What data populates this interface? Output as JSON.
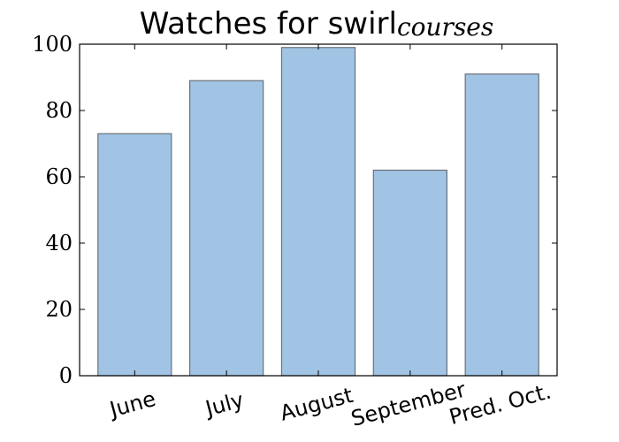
{
  "chart_data": {
    "type": "bar",
    "title": "Watches for swirl",
    "title_subscript": "courses",
    "categories": [
      "June",
      "July",
      "August",
      "September",
      "Pred. Oct."
    ],
    "values": [
      73,
      89,
      99,
      62,
      91
    ],
    "xlabel": "",
    "ylabel": "",
    "ylim": [
      0,
      100
    ],
    "yticks": [
      0,
      20,
      40,
      60,
      80,
      100
    ],
    "grid": false,
    "bar_color": "#a1c4e4",
    "bar_edge_color": "#6b7177"
  }
}
